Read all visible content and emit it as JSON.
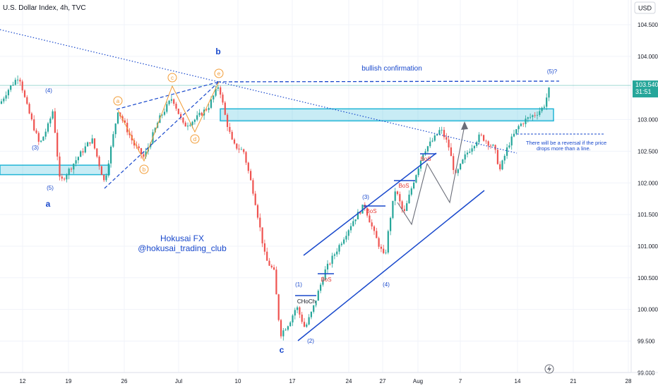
{
  "header": {
    "title": "U.S. Dollar Index, 4h, TVC"
  },
  "currency_button": "USD",
  "colors": {
    "up": "#26a69a",
    "down": "#ef5350",
    "blue": "#1848cc",
    "cyan": "#22b5d6",
    "orange": "#f29d38",
    "grey": "#6a6d78",
    "bos": "#e53935",
    "price_label": "#26a69a"
  },
  "chart_data": {
    "type": "candlestick",
    "title": "U.S. Dollar Index, 4h, TVC",
    "ylim": [
      99.0,
      104.8
    ],
    "y_ticks": [
      "104.500",
      "104.000",
      "103.500",
      "103.000",
      "102.500",
      "102.000",
      "101.500",
      "101.000",
      "100.500",
      "100.000",
      "99.500",
      "99.000"
    ],
    "y_tick_values": [
      104.5,
      104.0,
      103.5,
      103.0,
      102.5,
      102.0,
      101.5,
      101.0,
      100.5,
      100.0,
      99.5,
      99.0
    ],
    "x_ticks": [
      "12",
      "19",
      "26",
      "Jul",
      "10",
      "17",
      "24",
      "27",
      "Aug",
      "7",
      "14",
      "21",
      "28"
    ],
    "last_price": "103.540",
    "countdown": "31:51",
    "zones": [
      {
        "from": 102.13,
        "to": 102.28
      },
      {
        "from": 102.98,
        "to": 103.17
      }
    ],
    "levels": {
      "bullish_confirmation": 103.6,
      "reversal_line": 102.79
    },
    "wave_labels": [
      "(3)",
      "(4)",
      "(5)",
      "a",
      "b",
      "c",
      "(1)",
      "(2)",
      "(3)",
      "(4)",
      "(5)?"
    ],
    "triangle_labels": [
      "a",
      "b",
      "c",
      "d",
      "e"
    ],
    "bos_labels": [
      "BoS",
      "BoS",
      "BoS",
      "BoS"
    ],
    "choch_label": "CHoCh"
  },
  "annotations": {
    "bullish_confirmation": "bullish confirmation",
    "reversal_note_line1": "There will be a reversal if the price",
    "reversal_note_line2": "drops more than a line.",
    "watermark_line1": "Hokusai FX",
    "watermark_line2": "@hokusai_trading_club",
    "wave_a": "a",
    "wave_b": "b",
    "wave_c": "c",
    "w3_left": "(3)",
    "w4_left": "(4)",
    "w5_left": "(5)",
    "w1": "(1)",
    "w2": "(2)",
    "w3": "(3)",
    "w4": "(4)",
    "w5q": "(5)?",
    "tri_a": "a",
    "tri_b": "b",
    "tri_c": "c",
    "tri_d": "d",
    "tri_e": "e",
    "bos1": "BoS",
    "bos2": "BoS",
    "bos3": "BoS",
    "bos4": "BoS",
    "choch": "CHoCh"
  }
}
